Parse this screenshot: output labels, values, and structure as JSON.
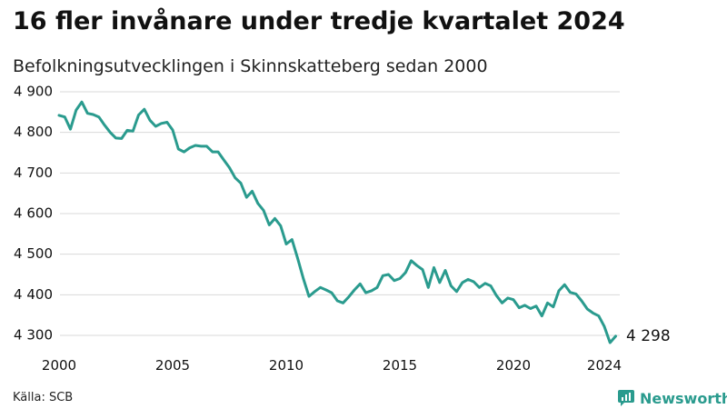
{
  "title": "16 fler invånare under tredje kvartalet 2024",
  "subtitle": "Befolkningsutvecklingen i Skinnskatteberg sedan 2000",
  "source": "Källa: SCB",
  "brand": {
    "name": "Newsworthy",
    "color": "#2a9b8e",
    "icon": "newsworthy-logo-icon"
  },
  "chart_data": {
    "type": "line",
    "x_unit": "year",
    "xlim": [
      2000,
      2024.8
    ],
    "ylim": [
      4280,
      4900
    ],
    "x_ticks": [
      2000,
      2005,
      2010,
      2015,
      2020,
      2024
    ],
    "x_tick_labels": [
      "2000",
      "2005",
      "2010",
      "2015",
      "2020",
      "2024"
    ],
    "y_ticks": [
      4300,
      4400,
      4500,
      4600,
      4700,
      4800,
      4900
    ],
    "y_tick_labels": [
      "4 300",
      "4 400",
      "4 500",
      "4 600",
      "4 700",
      "4 800",
      "4 900"
    ],
    "grid": true,
    "line_color": "#2a9b8e",
    "end_label": "4 298",
    "x": [
      2000.0,
      2000.25,
      2000.5,
      2000.75,
      2001.0,
      2001.25,
      2001.5,
      2001.75,
      2002.0,
      2002.25,
      2002.5,
      2002.75,
      2003.0,
      2003.25,
      2003.5,
      2003.75,
      2004.0,
      2004.25,
      2004.5,
      2004.75,
      2005.0,
      2005.25,
      2005.5,
      2005.75,
      2006.0,
      2006.25,
      2006.5,
      2006.75,
      2007.0,
      2007.25,
      2007.5,
      2007.75,
      2008.0,
      2008.25,
      2008.5,
      2008.75,
      2009.0,
      2009.25,
      2009.5,
      2009.75,
      2010.0,
      2010.25,
      2010.5,
      2010.75,
      2011.0,
      2011.25,
      2011.5,
      2011.75,
      2012.0,
      2012.25,
      2012.5,
      2012.75,
      2013.0,
      2013.25,
      2013.5,
      2013.75,
      2014.0,
      2014.25,
      2014.5,
      2014.75,
      2015.0,
      2015.25,
      2015.5,
      2015.75,
      2016.0,
      2016.25,
      2016.5,
      2016.75,
      2017.0,
      2017.25,
      2017.5,
      2017.75,
      2018.0,
      2018.25,
      2018.5,
      2018.75,
      2019.0,
      2019.25,
      2019.5,
      2019.75,
      2020.0,
      2020.25,
      2020.5,
      2020.75,
      2021.0,
      2021.25,
      2021.5,
      2021.75,
      2022.0,
      2022.25,
      2022.5,
      2022.75,
      2023.0,
      2023.25,
      2023.5,
      2023.75,
      2024.0,
      2024.25,
      2024.5
    ],
    "values": [
      4842,
      4838,
      4808,
      4855,
      4875,
      4847,
      4844,
      4838,
      4818,
      4800,
      4786,
      4785,
      4805,
      4803,
      4843,
      4857,
      4830,
      4815,
      4822,
      4825,
      4806,
      4759,
      4752,
      4762,
      4768,
      4766,
      4766,
      4752,
      4752,
      4732,
      4713,
      4688,
      4675,
      4640,
      4655,
      4625,
      4608,
      4572,
      4588,
      4570,
      4525,
      4536,
      4490,
      4440,
      4396,
      4408,
      4418,
      4412,
      4405,
      4385,
      4380,
      4395,
      4412,
      4427,
      4405,
      4410,
      4418,
      4447,
      4450,
      4435,
      4440,
      4455,
      4484,
      4472,
      4462,
      4418,
      4467,
      4430,
      4460,
      4422,
      4408,
      4430,
      4438,
      4432,
      4418,
      4428,
      4422,
      4398,
      4380,
      4392,
      4388,
      4368,
      4374,
      4366,
      4372,
      4348,
      4380,
      4370,
      4410,
      4425,
      4406,
      4402,
      4385,
      4365,
      4355,
      4348,
      4322,
      4282,
      4298
    ]
  }
}
